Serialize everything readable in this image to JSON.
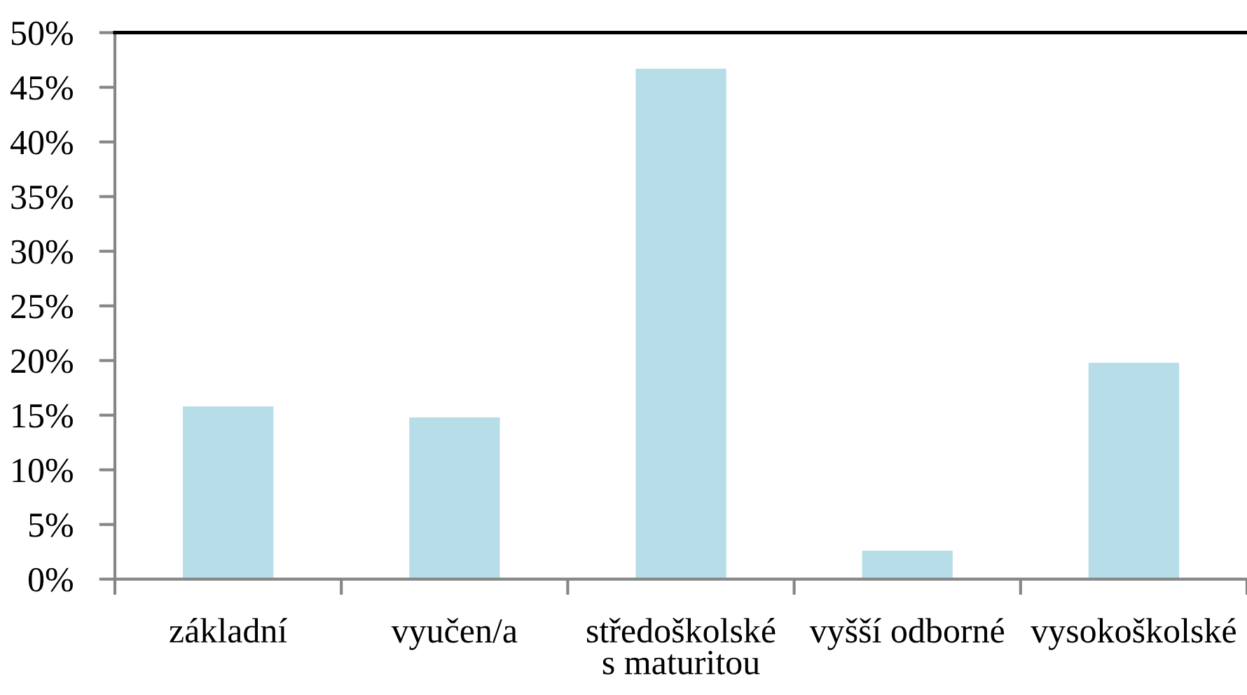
{
  "chart_data": {
    "type": "bar",
    "categories": [
      "základní",
      "vyučen/a",
      "středoškolské\ns maturitou",
      "vyšší odborné",
      "vysokoškolské"
    ],
    "values": [
      15.8,
      14.8,
      46.7,
      2.6,
      19.8
    ],
    "color": "#b7dde8",
    "ylim": [
      0,
      50
    ],
    "yticks": [
      {
        "value": 0,
        "label": "0%"
      },
      {
        "value": 5,
        "label": "5%"
      },
      {
        "value": 10,
        "label": "10%"
      },
      {
        "value": 15,
        "label": "15%"
      },
      {
        "value": 20,
        "label": "20%"
      },
      {
        "value": 25,
        "label": "25%"
      },
      {
        "value": 30,
        "label": "30%"
      },
      {
        "value": 35,
        "label": "35%"
      },
      {
        "value": 40,
        "label": "40%"
      },
      {
        "value": 45,
        "label": "45%"
      },
      {
        "value": 50,
        "label": "50%"
      }
    ],
    "grid": false
  }
}
